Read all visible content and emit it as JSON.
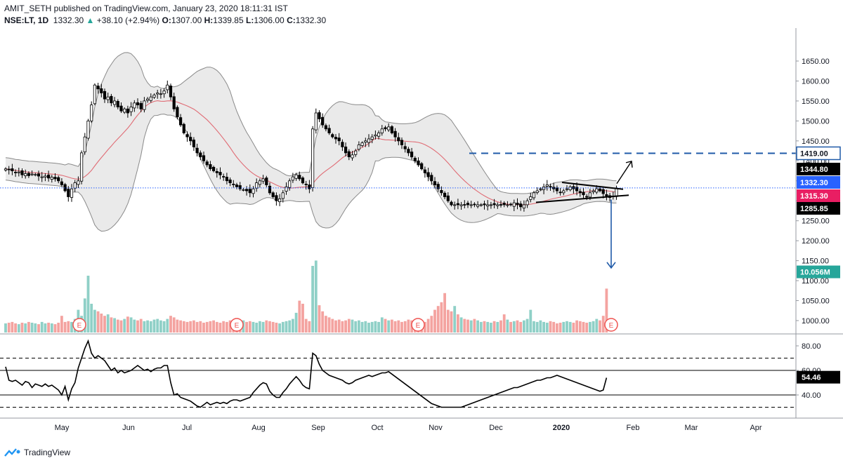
{
  "header": {
    "line1": "AMIT_SETH published on TradingView.com, January 23, 2020 18:11:31 IST",
    "symbol": "NSE:LT, 1D",
    "last": "1332.30",
    "up_arrow": "▲",
    "change": "+38.10 (+2.94%)",
    "o_label": "O:",
    "o": "1307.00",
    "h_label": "H:",
    "h": "1339.85",
    "l_label": "L:",
    "l": "1306.00",
    "c_label": "C:",
    "c": "1332.30"
  },
  "footer": {
    "brand": "TradingView",
    "logo_icon": "tradingview-logo-icon"
  },
  "colors": {
    "up": "#26a69a",
    "down": "#ef5350",
    "candle_up_fill": "#ffffff",
    "candle_body_dark": "#000000",
    "ma": "#e06c75",
    "band_fill": "#e6e6e6",
    "band_line": "#8a8a8a",
    "vol_up": "#8fd0c7",
    "vol_down": "#f4a3a0",
    "target": "#1f5aa8",
    "price_line": "#2962ff",
    "pink_tag": "#e91e63",
    "teal_tag": "#26a69a"
  },
  "chart_data": [
    {
      "type": "candlestick",
      "title": "NSE:LT, 1D",
      "price_axis_ticks": [
        "1650.00",
        "1600.00",
        "1550.00",
        "1500.00",
        "1450.00",
        "1400.00",
        "1350.00",
        "1300.00",
        "1250.00",
        "1200.00",
        "1150.00",
        "1100.00",
        "1050.00",
        "1000.00"
      ],
      "price_tags": [
        {
          "label": "1419.00",
          "kind": "outline_blue"
        },
        {
          "label": "1344.80",
          "kind": "black"
        },
        {
          "label": "1332.30",
          "kind": "blue"
        },
        {
          "label": "1315.30",
          "kind": "pink"
        },
        {
          "label": "1285.85",
          "kind": "black"
        }
      ],
      "volume_tag": "10.056M",
      "x_axis_labels": [
        "May",
        "Jun",
        "Jul",
        "Aug",
        "Sep",
        "Oct",
        "Nov",
        "Dec",
        "2020",
        "Feb",
        "Mar",
        "Apr"
      ],
      "earnings_marker_label": "E",
      "earnings_markers": 4,
      "close_series": [
        1380,
        1378,
        1375,
        1370,
        1372,
        1365,
        1368,
        1363,
        1367,
        1366,
        1362,
        1360,
        1362,
        1357,
        1359,
        1355,
        1350,
        1340,
        1325,
        1310,
        1330,
        1345,
        1350,
        1420,
        1460,
        1500,
        1540,
        1590,
        1580,
        1570,
        1555,
        1560,
        1545,
        1550,
        1535,
        1525,
        1530,
        1520,
        1535,
        1545,
        1540,
        1530,
        1550,
        1555,
        1560,
        1565,
        1570,
        1568,
        1575,
        1590,
        1560,
        1530,
        1510,
        1490,
        1470,
        1460,
        1450,
        1435,
        1420,
        1410,
        1400,
        1390,
        1380,
        1375,
        1370,
        1365,
        1360,
        1350,
        1345,
        1340,
        1335,
        1330,
        1328,
        1325,
        1320,
        1330,
        1345,
        1350,
        1355,
        1340,
        1320,
        1310,
        1300,
        1305,
        1320,
        1335,
        1350,
        1360,
        1365,
        1355,
        1345,
        1340,
        1330,
        1480,
        1520,
        1505,
        1490,
        1480,
        1470,
        1460,
        1455,
        1450,
        1435,
        1420,
        1410,
        1415,
        1425,
        1440,
        1445,
        1450,
        1455,
        1460,
        1465,
        1470,
        1480,
        1480,
        1485,
        1470,
        1460,
        1450,
        1440,
        1430,
        1420,
        1410,
        1400,
        1390,
        1380,
        1370,
        1360,
        1350,
        1340,
        1330,
        1320,
        1310,
        1300,
        1290,
        1290,
        1290,
        1290,
        1290,
        1290,
        1290,
        1290,
        1290,
        1290,
        1290,
        1290,
        1290,
        1290,
        1290,
        1290,
        1290,
        1290,
        1290,
        1295,
        1290,
        1285,
        1290,
        1300,
        1310,
        1320,
        1325,
        1330,
        1335,
        1340,
        1335,
        1330,
        1325,
        1320,
        1325,
        1330,
        1335,
        1330,
        1325,
        1320,
        1315,
        1310,
        1320,
        1325,
        1330,
        1325,
        1318,
        1312,
        1308,
        1312,
        1332
      ],
      "volume_pct_of_max": [
        12,
        13,
        14,
        12,
        11,
        13,
        12,
        14,
        13,
        12,
        11,
        14,
        12,
        13,
        12,
        11,
        13,
        22,
        14,
        15,
        14,
        18,
        30,
        22,
        45,
        75,
        38,
        30,
        28,
        25,
        22,
        24,
        20,
        19,
        17,
        16,
        18,
        21,
        20,
        17,
        16,
        18,
        15,
        16,
        15,
        17,
        18,
        16,
        15,
        18,
        22,
        20,
        17,
        16,
        15,
        14,
        15,
        16,
        14,
        15,
        13,
        14,
        15,
        16,
        14,
        13,
        15,
        14,
        16,
        13,
        14,
        15,
        16,
        14,
        15,
        14,
        13,
        15,
        14,
        16,
        15,
        14,
        13,
        12,
        14,
        15,
        16,
        18,
        26,
        42,
        38,
        18,
        15,
        88,
        95,
        36,
        28,
        22,
        20,
        18,
        16,
        17,
        15,
        16,
        18,
        17,
        15,
        16,
        14,
        15,
        13,
        14,
        15,
        14,
        20,
        18,
        16,
        17,
        15,
        16,
        14,
        15,
        17,
        16,
        14,
        15,
        13,
        14,
        18,
        22,
        30,
        35,
        40,
        52,
        30,
        28,
        35,
        24,
        20,
        18,
        17,
        16,
        18,
        16,
        14,
        15,
        14,
        13,
        15,
        14,
        16,
        24,
        17,
        14,
        15,
        16,
        14,
        16,
        18,
        30,
        15,
        14,
        16,
        14,
        13,
        15,
        14,
        12,
        13,
        14,
        15,
        14,
        13,
        16,
        15,
        14,
        13,
        14,
        15,
        18,
        16,
        22,
        58
      ],
      "rsi_axis_ticks": [
        "80.00",
        "60.00",
        "40.00"
      ],
      "rsi_value_tag": "54.46",
      "rsi_series": [
        63,
        52,
        51,
        52,
        50,
        48,
        51,
        50,
        46,
        49,
        48,
        47,
        49,
        47,
        48,
        46,
        44,
        40,
        47,
        36,
        45,
        50,
        62,
        70,
        78,
        84,
        74,
        70,
        72,
        70,
        68,
        64,
        60,
        62,
        58,
        60,
        58,
        59,
        60,
        62,
        64,
        62,
        60,
        61,
        59,
        61,
        62,
        62,
        64,
        64,
        50,
        40,
        41,
        38,
        37,
        36,
        35,
        33,
        31,
        30,
        32,
        34,
        32,
        33,
        34,
        33,
        34,
        33,
        35,
        36,
        36,
        35,
        36,
        37,
        38,
        42,
        45,
        48,
        50,
        49,
        43,
        40,
        38,
        38,
        42,
        45,
        49,
        52,
        55,
        52,
        48,
        46,
        45,
        74,
        72,
        65,
        60,
        58,
        56,
        55,
        54,
        53,
        52,
        50,
        49,
        50,
        52,
        53,
        54,
        55,
        56,
        55,
        56,
        57,
        58,
        58,
        59,
        57,
        55,
        53,
        51,
        49,
        47,
        45,
        43,
        41,
        39,
        37,
        35,
        33,
        32,
        31,
        30,
        30,
        30,
        30,
        30,
        30,
        30,
        31,
        32,
        33,
        34,
        35,
        36,
        37,
        38,
        39,
        40,
        41,
        42,
        43,
        44,
        45,
        46,
        46,
        47,
        48,
        49,
        50,
        51,
        52,
        52,
        53,
        54,
        54,
        55,
        56,
        55,
        54,
        53,
        52,
        51,
        50,
        49,
        48,
        47,
        46,
        45,
        44,
        43,
        44,
        54
      ]
    }
  ]
}
